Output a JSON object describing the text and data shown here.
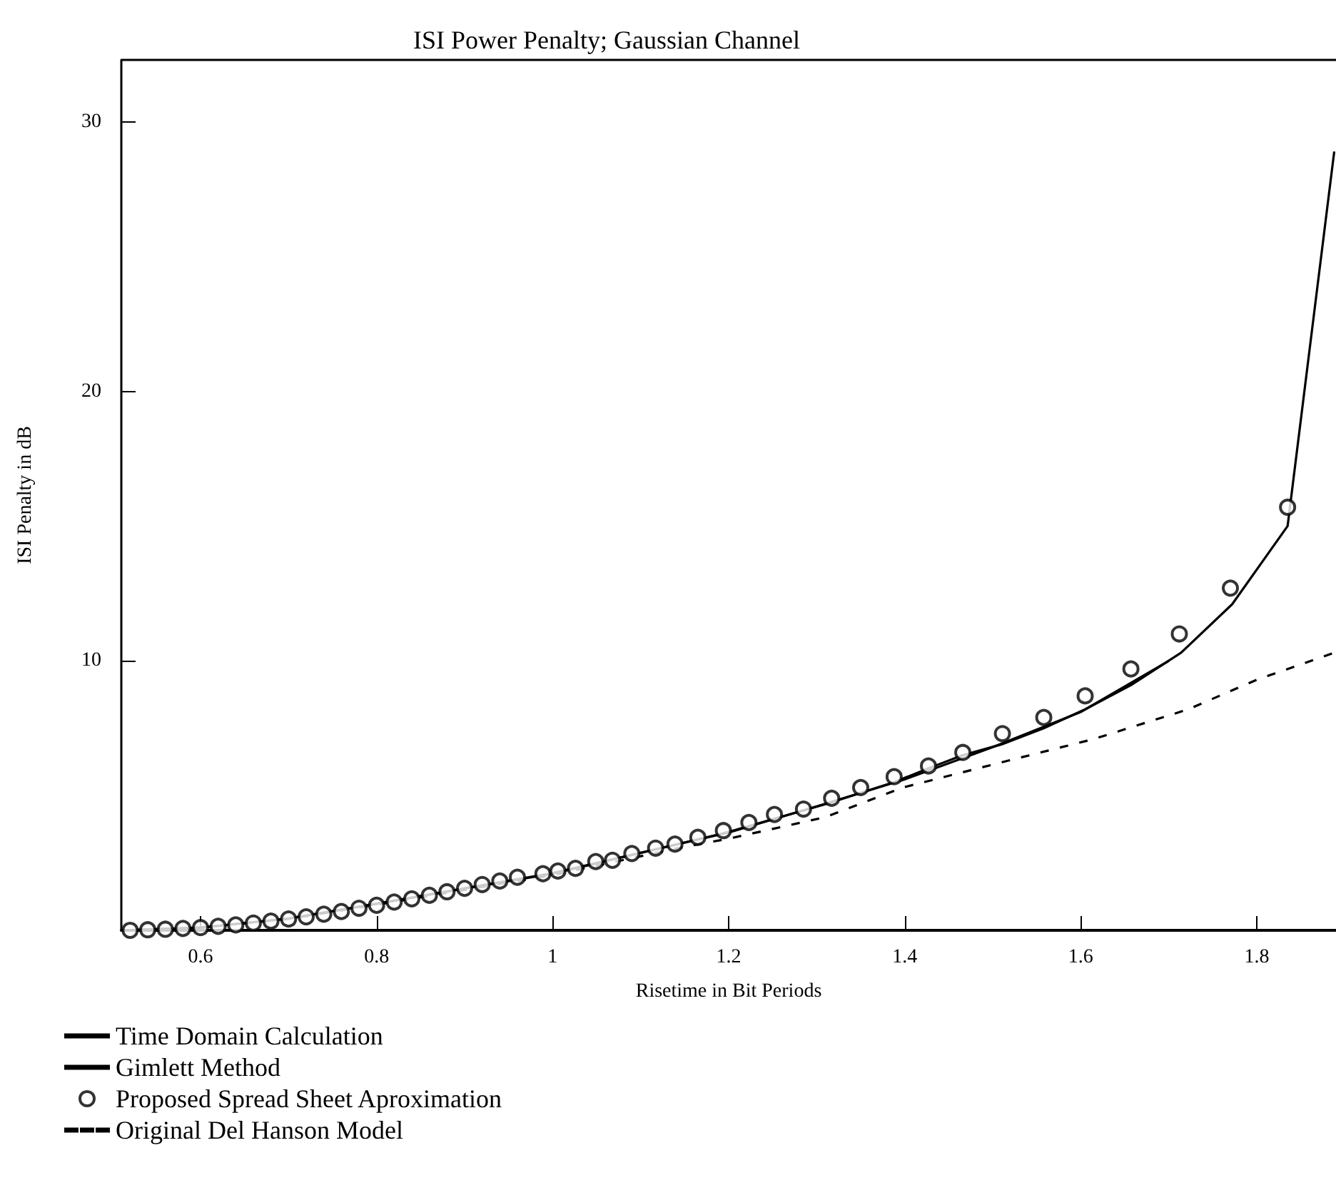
{
  "chart_data": {
    "type": "line",
    "title": "ISI Power Penalty; Gaussian Channel",
    "xlabel": "Risetime in Bit Periods",
    "ylabel": "ISI Penalty in dB",
    "xlim": [
      0.51,
      1.89
    ],
    "xticks": [
      0.6,
      0.8,
      1,
      1.2,
      1.4,
      1.6,
      1.8
    ],
    "ylim": [
      0,
      32.3
    ],
    "yticks": [
      10,
      20,
      30
    ],
    "grid": false,
    "legend": "bottom left",
    "series": [
      {
        "name": "Time Domain Calculation",
        "color": "#000000",
        "marker": "none",
        "line_style": "solid",
        "x": [
          0.51,
          0.6,
          0.7,
          0.8,
          0.9,
          1.0,
          1.097,
          1.194,
          1.312,
          1.388,
          1.426,
          1.466,
          1.51,
          1.558,
          1.605,
          1.657,
          1.714,
          1.772,
          1.835,
          1.888
        ],
        "values": [
          0,
          0.1,
          0.43,
          0.98,
          1.55,
          2.1,
          2.85,
          3.6,
          4.7,
          5.5,
          6.0,
          6.5,
          6.9,
          7.5,
          8.2,
          9.1,
          10.3,
          12.1,
          15.0,
          28.9
        ]
      },
      {
        "name": "Gimlett Method",
        "color": "#000000",
        "marker": "none",
        "line_style": "solid",
        "x": [
          0.51,
          0.6,
          0.7,
          0.8,
          0.9,
          1.0,
          1.1,
          1.2,
          1.3,
          1.4,
          1.5,
          1.6,
          1.7
        ],
        "values": [
          0,
          0.1,
          0.44,
          0.99,
          1.56,
          2.12,
          2.88,
          3.63,
          4.6,
          5.6,
          6.8,
          8.1,
          10.0
        ]
      },
      {
        "name": "Proposed Spread Sheet Aproximation",
        "type": "scatter",
        "color": "#000000",
        "marker": "circle",
        "x": [
          0.52,
          0.54,
          0.56,
          0.58,
          0.6,
          0.62,
          0.64,
          0.66,
          0.68,
          0.7,
          0.72,
          0.74,
          0.76,
          0.78,
          0.8,
          0.82,
          0.84,
          0.86,
          0.88,
          0.9,
          0.92,
          0.94,
          0.96,
          0.989,
          1.006,
          1.026,
          1.049,
          1.068,
          1.09,
          1.117,
          1.139,
          1.165,
          1.194,
          1.223,
          1.252,
          1.285,
          1.317,
          1.35,
          1.388,
          1.427,
          1.466,
          1.511,
          1.558,
          1.605,
          1.657,
          1.712,
          1.77,
          1.835
        ],
        "values": [
          0,
          0.02,
          0.04,
          0.07,
          0.1,
          0.15,
          0.2,
          0.27,
          0.34,
          0.42,
          0.5,
          0.6,
          0.7,
          0.82,
          0.93,
          1.05,
          1.17,
          1.3,
          1.43,
          1.56,
          1.7,
          1.83,
          1.97,
          2.1,
          2.2,
          2.3,
          2.55,
          2.6,
          2.85,
          3.05,
          3.2,
          3.45,
          3.7,
          4.0,
          4.3,
          4.5,
          4.9,
          5.3,
          5.7,
          6.1,
          6.6,
          7.3,
          7.9,
          8.7,
          9.7,
          11.0,
          12.7,
          15.7
        ]
      },
      {
        "name": "Original Del Hanson Model",
        "color": "#000000",
        "marker": "none",
        "line_style": "dashed",
        "x": [
          0.51,
          0.6,
          0.7,
          0.8,
          0.9,
          1.0,
          1.1,
          1.15,
          1.2,
          1.31,
          1.398,
          1.506,
          1.615,
          1.722,
          1.8,
          1.888
        ],
        "values": [
          0,
          0.1,
          0.42,
          0.95,
          1.5,
          2.05,
          2.75,
          3.1,
          3.4,
          4.2,
          5.3,
          6.2,
          7.1,
          8.2,
          9.3,
          10.3
        ]
      }
    ]
  }
}
